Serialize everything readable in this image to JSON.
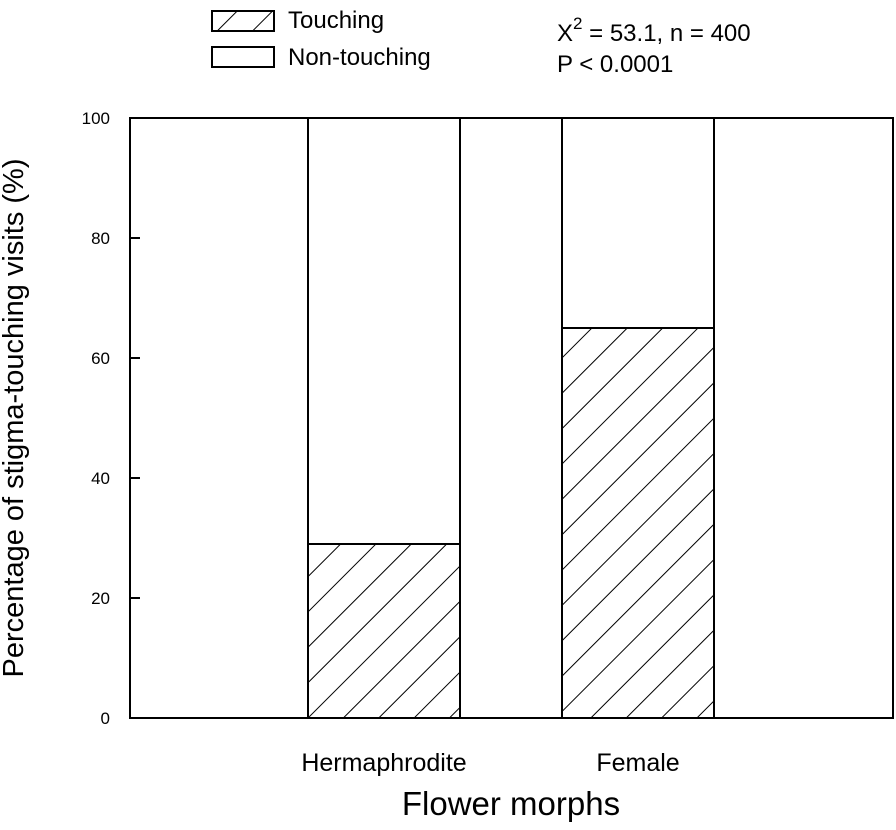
{
  "chart_data": {
    "type": "bar",
    "stacked": true,
    "categories": [
      "Hermaphrodite",
      "Female"
    ],
    "series": [
      {
        "name": "Touching",
        "values": [
          29,
          65
        ],
        "fill": "hatch"
      },
      {
        "name": "Non-touching",
        "values": [
          71,
          35
        ],
        "fill": "#ffffff"
      }
    ],
    "xlabel": "Flower morphs",
    "ylabel": "Percentage of  stigma-touching visits (%)",
    "ylim": [
      0,
      100
    ],
    "yticks": [
      0,
      20,
      40,
      60,
      80,
      100
    ],
    "grid": false,
    "legend_position": "top-left",
    "annotation": {
      "stat_symbol": "X",
      "stat_superscript": "2",
      "stat_rest": " = 53.1, n = 400",
      "p_value": "P < 0.0001"
    },
    "colors": {
      "stroke": "#000000",
      "background": "#ffffff"
    }
  }
}
